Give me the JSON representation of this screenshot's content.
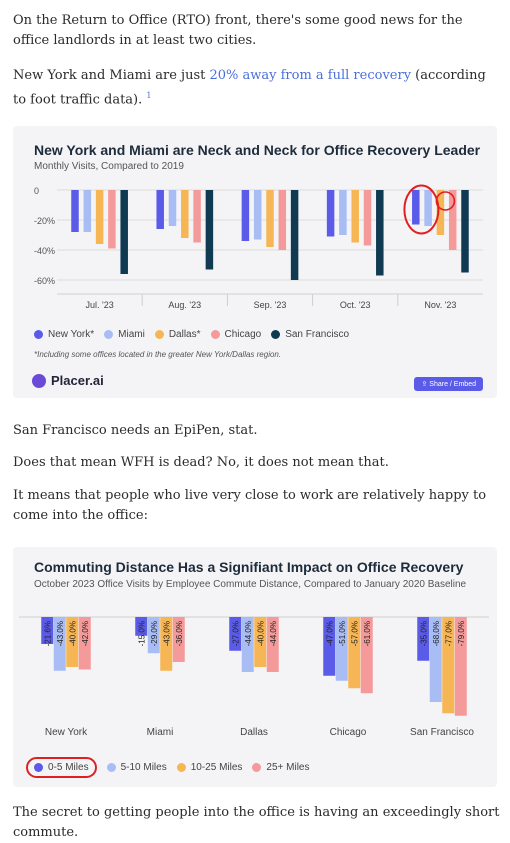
{
  "article": {
    "p1": "On the Return to Office (RTO) front, there's some good news for the office landlords in at least two cities.",
    "p2_before": "New York and Miami are just ",
    "p2_link": "20% away from a full recovery",
    "p2_after": " (according to foot traffic data).",
    "p2_footnote": "1",
    "p3": "San Francisco needs an EpiPen, stat.",
    "p4": "Does that mean WFH is dead? No, it does not mean that.",
    "p5": "It means that people who live very close to work are relatively happy to come into the office:",
    "p6": "The secret to getting people into the office is having an exceedingly short commute."
  },
  "chart1": {
    "title": "New York and Miami are Neck and Neck for Office Recovery Leader",
    "subtitle": "Monthly Visits, Compared to 2019",
    "footnote": "*Including some offices located in the greater New York/Dallas region.",
    "brand": "Placer.ai",
    "share_label": "Share / Embed",
    "legend": [
      "New York*",
      "Miami",
      "Dallas*",
      "Chicago",
      "San Francisco"
    ],
    "colors": [
      "#5b5bea",
      "#a9bdf5",
      "#f6b655",
      "#f59a9a",
      "#0f3a52"
    ]
  },
  "chart2": {
    "title": "Commuting Distance Has a Signifiant Impact on Office Recovery",
    "subtitle": "October 2023 Office Visits by Employee Commute Distance, Compared to January 2020 Baseline",
    "legend": [
      "0-5 Miles",
      "5-10 Miles",
      "10-25 Miles",
      "25+ Miles"
    ],
    "colors": [
      "#5b5bea",
      "#a9bdf5",
      "#f6b655",
      "#f59a9a"
    ]
  },
  "chart_data": [
    {
      "type": "bar",
      "title": "New York and Miami are Neck and Neck for Office Recovery Leader",
      "subtitle": "Monthly Visits, Compared to 2019",
      "categories": [
        "Jul. '23",
        "Aug. '23",
        "Sep. '23",
        "Oct. '23",
        "Nov. '23"
      ],
      "yticks": [
        "0",
        "-20%",
        "-40%",
        "-60%"
      ],
      "ylim": [
        -60,
        0
      ],
      "series": [
        {
          "name": "New York*",
          "values": [
            -28,
            -26,
            -34,
            -31,
            -23
          ]
        },
        {
          "name": "Miami",
          "values": [
            -28,
            -24,
            -33,
            -30,
            -24
          ]
        },
        {
          "name": "Dallas*",
          "values": [
            -36,
            -32,
            -38,
            -35,
            -30
          ]
        },
        {
          "name": "Chicago",
          "values": [
            -39,
            -35,
            -40,
            -37,
            -40
          ]
        },
        {
          "name": "San Francisco",
          "values": [
            -56,
            -53,
            -60,
            -57,
            -55
          ]
        }
      ],
      "legend_position": "bottom"
    },
    {
      "type": "bar",
      "title": "Commuting Distance Has a Signifiant Impact on Office Recovery",
      "subtitle": "October 2023 Office Visits by Employee Commute Distance, Compared to January 2020 Baseline",
      "categories": [
        "New York",
        "Miami",
        "Dallas",
        "Chicago",
        "San Francisco"
      ],
      "series": [
        {
          "name": "0-5 Miles",
          "values": [
            -21.6,
            -15.0,
            -27.0,
            -47.0,
            -35.0
          ],
          "labels": [
            "-21.6%",
            "-15.0%",
            "-27.0%",
            "-47.0%",
            "-35.0%"
          ]
        },
        {
          "name": "5-10 Miles",
          "values": [
            -43.0,
            -29.0,
            -44.0,
            -51.0,
            -68.0
          ],
          "labels": [
            "-43.0%",
            "-29.0%",
            "-44.0%",
            "-51.0%",
            "-68.0%"
          ]
        },
        {
          "name": "10-25 Miles",
          "values": [
            -40.0,
            -43.0,
            -40.0,
            -57.0,
            -77.0
          ],
          "labels": [
            "-40.0%",
            "-43.0%",
            "-40.0%",
            "-57.0%",
            "-77.0%"
          ]
        },
        {
          "name": "25+ Miles",
          "values": [
            -42.0,
            -36.0,
            -44.0,
            -61.0,
            -79.0
          ],
          "labels": [
            "-42.0%",
            "-36.0%",
            "-44.0%",
            "-61.0%",
            "-79.0%"
          ]
        }
      ],
      "legend_position": "bottom"
    }
  ]
}
